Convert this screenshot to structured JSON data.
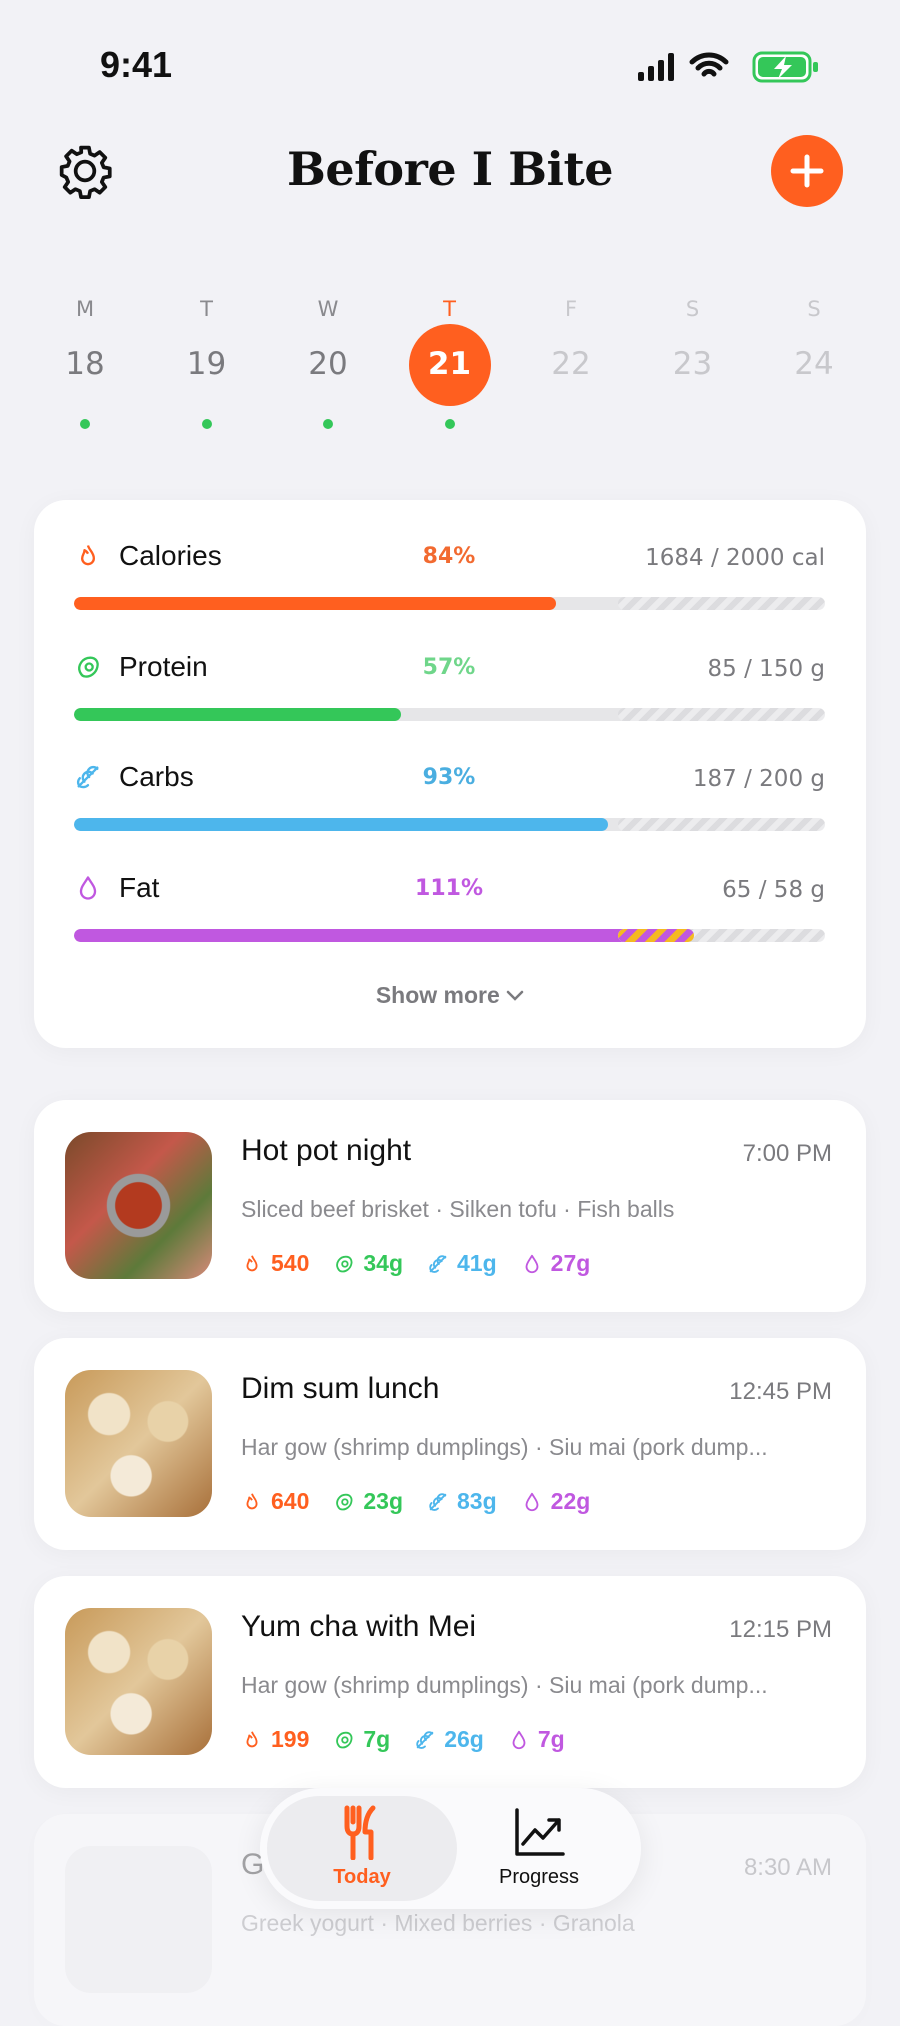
{
  "status_bar": {
    "time": "9:41"
  },
  "header": {
    "title": "Before I Bite"
  },
  "week": [
    {
      "letter": "M",
      "date": "18",
      "logged": true,
      "selected": false
    },
    {
      "letter": "T",
      "date": "19",
      "logged": true,
      "selected": false
    },
    {
      "letter": "W",
      "date": "20",
      "logged": true,
      "selected": false
    },
    {
      "letter": "T",
      "date": "21",
      "logged": true,
      "selected": true
    },
    {
      "letter": "F",
      "date": "22",
      "logged": false,
      "selected": false
    },
    {
      "letter": "S",
      "date": "23",
      "logged": false,
      "selected": false
    },
    {
      "letter": "S",
      "date": "24",
      "logged": false,
      "selected": false
    }
  ],
  "macros": [
    {
      "name": "Calories",
      "percent": 84,
      "percent_label": "84%",
      "amount": "1684 / 2000 cal",
      "color": "#ff5f1f",
      "label_color": "#f26a30"
    },
    {
      "name": "Protein",
      "percent": 57,
      "percent_label": "57%",
      "amount": "85 / 150 g",
      "color": "#34c759",
      "label_color": "#6fd68a"
    },
    {
      "name": "Carbs",
      "percent": 93,
      "percent_label": "93%",
      "amount": "187 / 200 g",
      "color": "#4db6ec",
      "label_color": "#4aaee0"
    },
    {
      "name": "Fat",
      "percent": 111,
      "percent_label": "111%",
      "amount": "65 / 58 g",
      "color": "#c058e0",
      "label_color": "#c058e0"
    }
  ],
  "show_more": "Show more",
  "meals": [
    {
      "title": "Hot pot night",
      "time": "7:00 PM",
      "items": "Sliced beef brisket · Silken tofu · Fish balls",
      "calories": "540",
      "protein": "34g",
      "carbs": "41g",
      "fat": "27g"
    },
    {
      "title": "Dim sum lunch",
      "time": "12:45 PM",
      "items": "Har gow (shrimp dumplings) · Siu mai (pork dump...",
      "calories": "640",
      "protein": "23g",
      "carbs": "83g",
      "fat": "22g"
    },
    {
      "title": "Yum cha with Mei",
      "time": "12:15 PM",
      "items": "Har gow (shrimp dumplings) · Siu mai (pork dump...",
      "calories": "199",
      "protein": "7g",
      "carbs": "26g",
      "fat": "7g"
    },
    {
      "title": "G",
      "time": "8:30 AM",
      "items": "Greek yogurt · Mixed berries · Granola"
    }
  ],
  "nav": {
    "today": "Today",
    "progress": "Progress"
  }
}
